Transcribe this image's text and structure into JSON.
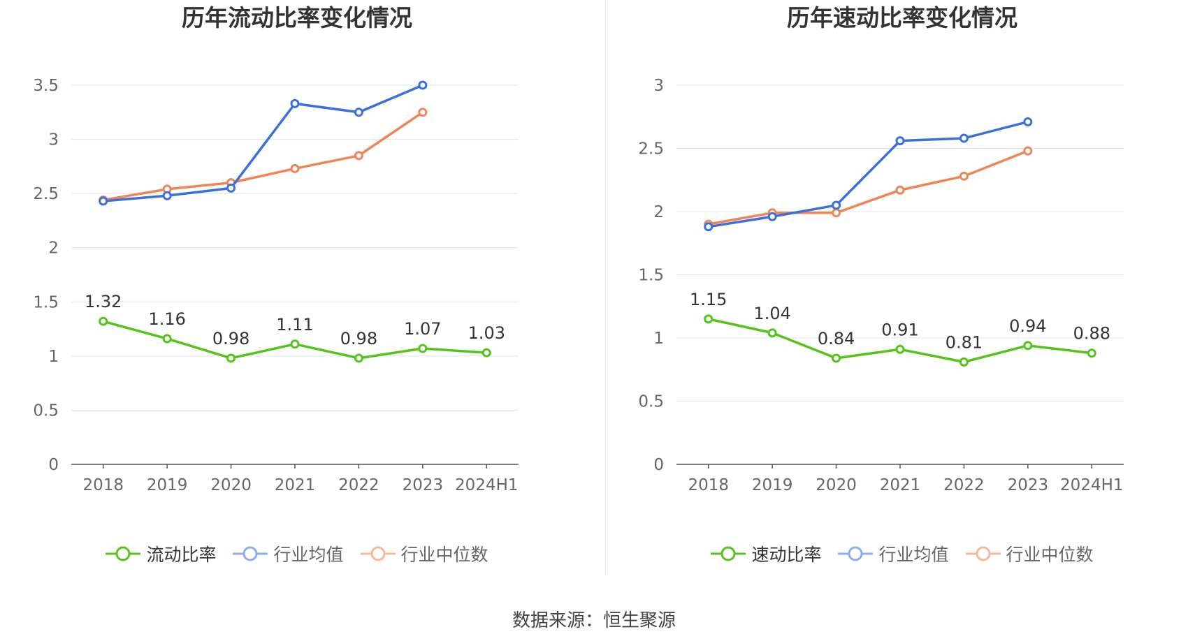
{
  "colors": {
    "main": "#52c41a",
    "avg": "#3b6fdc",
    "median": "#f08456",
    "grid": "#dce3f2",
    "axis": "#555555",
    "tick_text": "#666666"
  },
  "chart_data": [
    {
      "type": "line",
      "title": "历年流动比率变化情况",
      "categories": [
        "2018",
        "2019",
        "2020",
        "2021",
        "2022",
        "2023",
        "2024H1"
      ],
      "ylim": [
        0,
        3.5
      ],
      "yticks": [
        "0",
        "0.5",
        "1",
        "1.5",
        "2",
        "2.5",
        "3",
        "3.5"
      ],
      "grid": true,
      "legend_position": "bottom",
      "series": [
        {
          "name": "流动比率",
          "key": "main",
          "values": [
            1.32,
            1.16,
            0.98,
            1.11,
            0.98,
            1.07,
            1.03
          ],
          "labels": [
            "1.32",
            "1.16",
            "0.98",
            "1.11",
            "0.98",
            "1.07",
            "1.03"
          ]
        },
        {
          "name": "行业均值",
          "key": "avg",
          "values": [
            2.43,
            2.48,
            2.55,
            3.33,
            3.25,
            3.5,
            null
          ]
        },
        {
          "name": "行业中位数",
          "key": "median",
          "values": [
            2.44,
            2.54,
            2.6,
            2.73,
            2.85,
            3.25,
            null
          ]
        }
      ]
    },
    {
      "type": "line",
      "title": "历年速动比率变化情况",
      "categories": [
        "2018",
        "2019",
        "2020",
        "2021",
        "2022",
        "2023",
        "2024H1"
      ],
      "ylim": [
        0,
        3
      ],
      "yticks": [
        "0",
        "0.5",
        "1",
        "1.5",
        "2",
        "2.5",
        "3"
      ],
      "grid": true,
      "legend_position": "bottom",
      "series": [
        {
          "name": "速动比率",
          "key": "main",
          "values": [
            1.15,
            1.04,
            0.84,
            0.91,
            0.81,
            0.94,
            0.88
          ],
          "labels": [
            "1.15",
            "1.04",
            "0.84",
            "0.91",
            "0.81",
            "0.94",
            "0.88"
          ]
        },
        {
          "name": "行业均值",
          "key": "avg",
          "values": [
            1.88,
            1.96,
            2.05,
            2.56,
            2.58,
            2.71,
            null
          ]
        },
        {
          "name": "行业中位数",
          "key": "median",
          "values": [
            1.9,
            1.99,
            1.99,
            2.17,
            2.28,
            2.48,
            null
          ]
        }
      ]
    }
  ],
  "source": "数据来源：恒生聚源"
}
